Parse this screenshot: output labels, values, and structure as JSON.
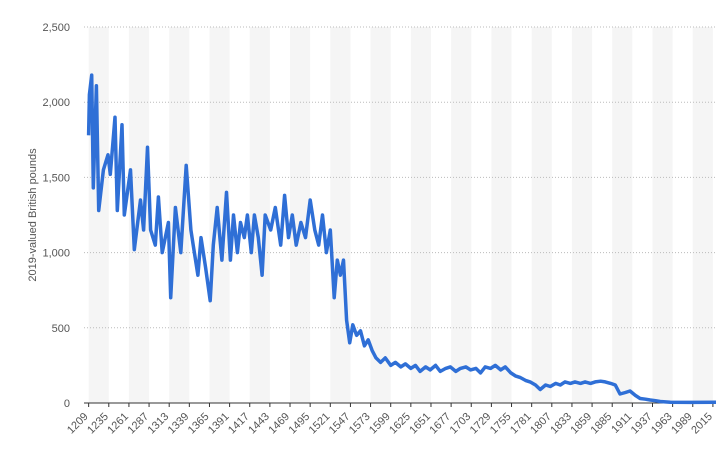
{
  "chart_data": {
    "type": "line",
    "y_label": "2019-valued British pounds",
    "x": [
      1209,
      1210,
      1213,
      1215,
      1219,
      1222,
      1228,
      1234,
      1237,
      1243,
      1246,
      1252,
      1255,
      1263,
      1268,
      1276,
      1280,
      1285,
      1289,
      1295,
      1299,
      1304,
      1312,
      1315,
      1321,
      1328,
      1335,
      1341,
      1344,
      1350,
      1354,
      1360,
      1366,
      1370,
      1375,
      1381,
      1387,
      1392,
      1396,
      1401,
      1405,
      1410,
      1414,
      1419,
      1423,
      1428,
      1433,
      1437,
      1444,
      1450,
      1457,
      1462,
      1467,
      1472,
      1477,
      1483,
      1489,
      1495,
      1501,
      1506,
      1511,
      1516,
      1521,
      1526,
      1530,
      1534,
      1538,
      1542,
      1546,
      1550,
      1555,
      1560,
      1565,
      1570,
      1575,
      1580,
      1586,
      1592,
      1599,
      1605,
      1612,
      1618,
      1625,
      1631,
      1637,
      1644,
      1650,
      1657,
      1663,
      1670,
      1676,
      1683,
      1689,
      1696,
      1702,
      1709,
      1715,
      1721,
      1728,
      1734,
      1741,
      1747,
      1754,
      1760,
      1766,
      1773,
      1779,
      1786,
      1792,
      1799,
      1805,
      1812,
      1818,
      1824,
      1831,
      1837,
      1844,
      1850,
      1857,
      1863,
      1870,
      1876,
      1883,
      1889,
      1895,
      1902,
      1908,
      1915,
      1921,
      1928,
      1934,
      1941,
      1947,
      1960,
      1986,
      2019
    ],
    "series": [
      {
        "name": "value",
        "color": "#2f6fd6",
        "values": [
          1780,
          2050,
          2180,
          1430,
          2110,
          1280,
          1550,
          1650,
          1520,
          1900,
          1280,
          1850,
          1250,
          1550,
          1020,
          1350,
          1150,
          1700,
          1150,
          1050,
          1370,
          1000,
          1200,
          700,
          1300,
          1000,
          1580,
          1150,
          1050,
          850,
          1100,
          900,
          680,
          1050,
          1300,
          950,
          1400,
          950,
          1250,
          1000,
          1200,
          1100,
          1250,
          1000,
          1250,
          1100,
          850,
          1250,
          1150,
          1300,
          1050,
          1380,
          1100,
          1250,
          1050,
          1200,
          1100,
          1350,
          1150,
          1050,
          1250,
          1000,
          1150,
          700,
          950,
          850,
          950,
          550,
          400,
          520,
          450,
          480,
          380,
          420,
          350,
          300,
          270,
          300,
          250,
          270,
          240,
          260,
          230,
          250,
          210,
          240,
          220,
          250,
          210,
          230,
          240,
          210,
          230,
          240,
          220,
          230,
          200,
          240,
          230,
          250,
          220,
          240,
          200,
          180,
          170,
          150,
          140,
          120,
          90,
          120,
          110,
          130,
          120,
          140,
          130,
          140,
          130,
          140,
          130,
          140,
          145,
          140,
          130,
          120,
          60,
          70,
          80,
          50,
          30,
          25,
          20,
          15,
          10,
          5,
          4,
          5
        ]
      }
    ],
    "xlim": [
      1203,
      2019
    ],
    "xticks": [
      1209,
      1235,
      1261,
      1287,
      1313,
      1339,
      1365,
      1391,
      1417,
      1443,
      1469,
      1495,
      1521,
      1547,
      1573,
      1599,
      1625,
      1651,
      1677,
      1703,
      1729,
      1755,
      1781,
      1807,
      1833,
      1859,
      1885,
      1911,
      1937,
      1963,
      1989,
      2015
    ],
    "ylim": [
      0,
      2500
    ],
    "yticks": [
      0,
      500,
      {
        "value": 1000,
        "label": "1,000"
      },
      {
        "value": 1500,
        "label": "1,500"
      },
      {
        "value": 2000,
        "label": "2,000"
      },
      {
        "value": 2500,
        "label": "2,500"
      }
    ],
    "grid": true
  }
}
